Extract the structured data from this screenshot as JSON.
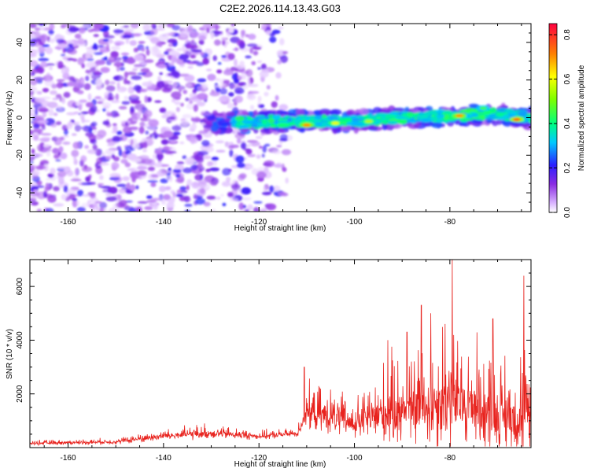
{
  "figure": {
    "title": "C2E2.2026.114.13.43.G03"
  },
  "chart_data": [
    {
      "type": "heatmap",
      "xlabel": "Height of straight line (km)",
      "ylabel": "Frequency (Hz)",
      "xlim": [
        -168,
        -63
      ],
      "ylim": [
        -50,
        50
      ],
      "xticks": [
        -160,
        -140,
        -120,
        -100,
        -80
      ],
      "xtick_labels": [
        "-160",
        "-140",
        "-120",
        "-100",
        "-80"
      ],
      "yticks": [
        -40,
        -20,
        0,
        20,
        40
      ],
      "ytick_labels": [
        "-40",
        "-20",
        "0",
        "20",
        "40"
      ],
      "colorbar": {
        "label": "Normalized spectral amplitude",
        "range": [
          0.0,
          0.85
        ],
        "ticks": [
          0.0,
          0.2,
          0.4,
          0.6,
          0.8
        ],
        "tick_labels": [
          "0.0",
          "0.2",
          "0.4",
          "0.6",
          "0.8"
        ]
      },
      "noise_region": {
        "x_range": [
          -168,
          -114
        ],
        "amplitude_range": [
          0.02,
          0.22
        ]
      },
      "signal_band": {
        "x_range": [
          -131,
          -63
        ],
        "center_frequency_hz": [
          {
            "x": -130,
            "f": -3
          },
          {
            "x": -115,
            "f": -2
          },
          {
            "x": -100,
            "f": -2
          },
          {
            "x": -90,
            "f": 0
          },
          {
            "x": -80,
            "f": 1
          },
          {
            "x": -70,
            "f": 2
          },
          {
            "x": -63,
            "f": 0
          }
        ],
        "peaks": [
          {
            "x": -110,
            "f": -4,
            "a": 0.7
          },
          {
            "x": -104,
            "f": -3,
            "a": 0.6
          },
          {
            "x": -97,
            "f": -2,
            "a": 0.55
          },
          {
            "x": -78,
            "f": 1,
            "a": 0.7
          },
          {
            "x": -66,
            "f": -1,
            "a": 0.75
          },
          {
            "x": -73,
            "f": 5,
            "a": 0.45
          }
        ]
      }
    },
    {
      "type": "line",
      "xlabel": "Height of straight line (km)",
      "ylabel": "SNR (10 * v/v)",
      "xlim": [
        -168,
        -63
      ],
      "ylim": [
        0,
        7000
      ],
      "xticks": [
        -160,
        -140,
        -120,
        -100,
        -80
      ],
      "xtick_labels": [
        "-160",
        "-140",
        "-120",
        "-100",
        "-80"
      ],
      "yticks": [
        2000,
        4000,
        6000
      ],
      "ytick_labels": [
        "2000",
        "4000",
        "6000"
      ],
      "color": "#e8231e",
      "series_envelope": [
        {
          "x": -168,
          "base": 150,
          "spread": 150
        },
        {
          "x": -150,
          "base": 200,
          "spread": 200
        },
        {
          "x": -140,
          "base": 400,
          "spread": 400
        },
        {
          "x": -130,
          "base": 500,
          "spread": 500
        },
        {
          "x": -120,
          "base": 400,
          "spread": 300
        },
        {
          "x": -112,
          "base": 500,
          "spread": 300
        },
        {
          "x": -110,
          "base": 1200,
          "spread": 1500
        },
        {
          "x": -100,
          "base": 800,
          "spread": 1500
        },
        {
          "x": -95,
          "base": 1000,
          "spread": 2600
        },
        {
          "x": -85,
          "base": 1300,
          "spread": 3800
        },
        {
          "x": -80,
          "base": 1500,
          "spread": 4300
        },
        {
          "x": -70,
          "base": 1000,
          "spread": 3300
        },
        {
          "x": -63,
          "base": 800,
          "spread": 3800
        }
      ],
      "annotated_peaks": [
        {
          "x": -110.5,
          "y": 3000
        },
        {
          "x": -93,
          "y": 4000
        },
        {
          "x": -89,
          "y": 4300
        },
        {
          "x": -86,
          "y": 5300
        },
        {
          "x": -84,
          "y": 5000
        },
        {
          "x": -81,
          "y": 4600
        },
        {
          "x": -79.5,
          "y": 7000
        },
        {
          "x": -71,
          "y": 4800
        },
        {
          "x": -64.5,
          "y": 6400
        }
      ]
    }
  ]
}
